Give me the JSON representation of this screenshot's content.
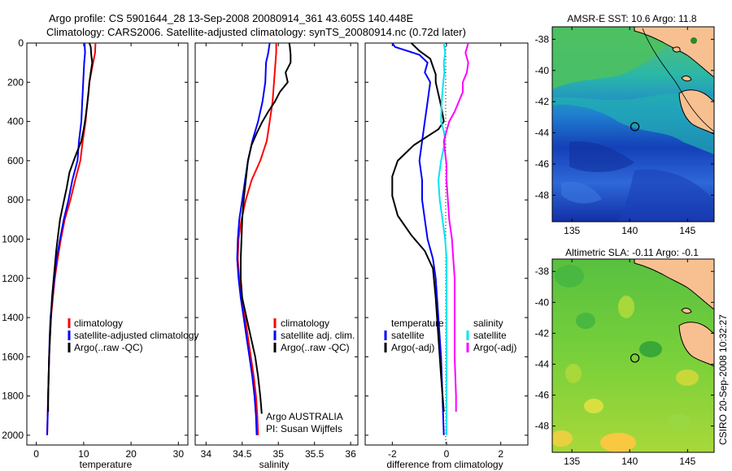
{
  "header": {
    "line1": "Argo profile: CS 5901644_28 13-Sep-2008 20080914_361 43.605S 140.448E",
    "line2": "Climatology: CARS2006. Satellite-adjusted climatology: synTS_20080914.nc (0.72d later)"
  },
  "side_label": "CSIRO 20-Sep-2008 10:32:27",
  "chart_data": [
    {
      "type": "line",
      "xlabel": "temperature",
      "ylim": [
        0,
        2050
      ],
      "xlim": [
        -2,
        32
      ],
      "xticks": [
        "0",
        "10",
        "20",
        "30"
      ],
      "yticks": [
        "0",
        "200",
        "400",
        "600",
        "800",
        "1000",
        "1200",
        "1400",
        "1600",
        "1800",
        "2000"
      ],
      "legend": {
        "position": "lower-right",
        "entries": [
          "climatology",
          "satellite-adjusted climatology",
          "Argo(..raw -QC)"
        ]
      },
      "series": [
        {
          "name": "climatology",
          "color": "#ff0000",
          "points": [
            [
              12.5,
              0
            ],
            [
              12.4,
              50
            ],
            [
              12.0,
              100
            ],
            [
              11.2,
              200
            ],
            [
              10.8,
              300
            ],
            [
              10.4,
              400
            ],
            [
              9.8,
              500
            ],
            [
              9.3,
              600
            ],
            [
              8.2,
              700
            ],
            [
              7.2,
              800
            ],
            [
              6.0,
              900
            ],
            [
              5.2,
              1000
            ],
            [
              4.5,
              1100
            ],
            [
              3.9,
              1200
            ],
            [
              3.5,
              1300
            ],
            [
              3.1,
              1400
            ],
            [
              2.9,
              1500
            ],
            [
              2.7,
              1600
            ],
            [
              2.6,
              1700
            ],
            [
              2.5,
              1800
            ],
            [
              2.4,
              1900
            ],
            [
              2.3,
              2000
            ]
          ]
        },
        {
          "name": "satellite-adjusted climatology",
          "color": "#0000ff",
          "points": [
            [
              10.2,
              0
            ],
            [
              10.3,
              50
            ],
            [
              10.1,
              100
            ],
            [
              9.9,
              200
            ],
            [
              9.7,
              300
            ],
            [
              9.5,
              400
            ],
            [
              9.0,
              500
            ],
            [
              8.7,
              600
            ],
            [
              7.6,
              700
            ],
            [
              6.8,
              800
            ],
            [
              5.8,
              900
            ],
            [
              5.0,
              1000
            ],
            [
              4.3,
              1100
            ],
            [
              3.8,
              1200
            ],
            [
              3.4,
              1300
            ],
            [
              3.0,
              1400
            ],
            [
              2.8,
              1500
            ],
            [
              2.7,
              1600
            ],
            [
              2.6,
              1700
            ],
            [
              2.5,
              1800
            ],
            [
              2.4,
              1900
            ],
            [
              2.3,
              2000
            ]
          ]
        },
        {
          "name": "Argo(..raw -QC)",
          "color": "#000000",
          "points": [
            [
              11.2,
              0
            ],
            [
              11.5,
              20
            ],
            [
              11.6,
              60
            ],
            [
              11.8,
              100
            ],
            [
              11.5,
              150
            ],
            [
              11.2,
              200
            ],
            [
              11.0,
              260
            ],
            [
              10.7,
              320
            ],
            [
              10.4,
              380
            ],
            [
              10.0,
              440
            ],
            [
              9.5,
              500
            ],
            [
              8.2,
              580
            ],
            [
              7.0,
              660
            ],
            [
              6.4,
              740
            ],
            [
              5.7,
              820
            ],
            [
              5.0,
              900
            ],
            [
              4.6,
              980
            ],
            [
              4.2,
              1060
            ],
            [
              3.9,
              1140
            ],
            [
              3.6,
              1220
            ],
            [
              3.3,
              1300
            ],
            [
              3.1,
              1400
            ],
            [
              2.9,
              1500
            ],
            [
              2.7,
              1600
            ],
            [
              2.6,
              1700
            ],
            [
              2.5,
              1800
            ],
            [
              2.5,
              1880
            ]
          ]
        }
      ]
    },
    {
      "type": "line",
      "xlabel": "salinity",
      "ylim": [
        0,
        2050
      ],
      "xlim": [
        33.85,
        36.1
      ],
      "xticks": [
        "34",
        "34.5",
        "35",
        "35.5",
        "36"
      ],
      "legend": {
        "position": "lower-right",
        "entries": [
          "climatology",
          "satellite adj. clim.",
          "Argo(..raw -QC)"
        ]
      },
      "annotation": [
        "Argo AUSTRALIA",
        "PI: Susan Wijffels"
      ],
      "series": [
        {
          "name": "climatology",
          "color": "#ff0000",
          "points": [
            [
              34.97,
              0
            ],
            [
              34.97,
              50
            ],
            [
              34.96,
              100
            ],
            [
              34.94,
              200
            ],
            [
              34.92,
              300
            ],
            [
              34.88,
              400
            ],
            [
              34.84,
              500
            ],
            [
              34.75,
              600
            ],
            [
              34.63,
              700
            ],
            [
              34.55,
              800
            ],
            [
              34.49,
              900
            ],
            [
              34.45,
              1000
            ],
            [
              34.44,
              1100
            ],
            [
              34.46,
              1200
            ],
            [
              34.5,
              1300
            ],
            [
              34.54,
              1400
            ],
            [
              34.58,
              1500
            ],
            [
              34.62,
              1600
            ],
            [
              34.66,
              1700
            ],
            [
              34.69,
              1800
            ],
            [
              34.71,
              1900
            ],
            [
              34.72,
              2000
            ]
          ]
        },
        {
          "name": "satellite adj. clim.",
          "color": "#0000ff",
          "points": [
            [
              34.88,
              0
            ],
            [
              34.86,
              50
            ],
            [
              34.83,
              100
            ],
            [
              34.82,
              200
            ],
            [
              34.78,
              300
            ],
            [
              34.72,
              400
            ],
            [
              34.64,
              500
            ],
            [
              34.58,
              600
            ],
            [
              34.54,
              700
            ],
            [
              34.5,
              800
            ],
            [
              34.46,
              900
            ],
            [
              34.44,
              1000
            ],
            [
              34.43,
              1100
            ],
            [
              34.45,
              1200
            ],
            [
              34.48,
              1300
            ],
            [
              34.52,
              1400
            ],
            [
              34.56,
              1500
            ],
            [
              34.6,
              1600
            ],
            [
              34.64,
              1700
            ],
            [
              34.67,
              1800
            ],
            [
              34.69,
              1900
            ],
            [
              34.7,
              2000
            ]
          ]
        },
        {
          "name": "Argo(..raw -QC)",
          "color": "#000000",
          "points": [
            [
              35.15,
              0
            ],
            [
              35.16,
              20
            ],
            [
              35.17,
              60
            ],
            [
              35.17,
              100
            ],
            [
              35.1,
              150
            ],
            [
              35.13,
              200
            ],
            [
              35.02,
              250
            ],
            [
              34.95,
              300
            ],
            [
              34.86,
              350
            ],
            [
              34.78,
              400
            ],
            [
              34.7,
              460
            ],
            [
              34.63,
              520
            ],
            [
              34.58,
              600
            ],
            [
              34.55,
              700
            ],
            [
              34.52,
              800
            ],
            [
              34.5,
              900
            ],
            [
              34.49,
              1000
            ],
            [
              34.48,
              1100
            ],
            [
              34.48,
              1200
            ],
            [
              34.5,
              1300
            ],
            [
              34.56,
              1400
            ],
            [
              34.62,
              1500
            ],
            [
              34.68,
              1600
            ],
            [
              34.72,
              1700
            ],
            [
              34.75,
              1800
            ],
            [
              34.77,
              1890
            ]
          ]
        }
      ]
    },
    {
      "type": "line",
      "xlabel": "difference from climatology",
      "ylim": [
        0,
        2050
      ],
      "xlim": [
        -3,
        3
      ],
      "xticks": [
        "-2",
        "0",
        "2"
      ],
      "legend": {
        "position": "lower-middle",
        "temperature_header": "temperature",
        "salinity_header": "salinity",
        "entries": [
          "satellite",
          "Argo(-adj)",
          "satellite",
          "Argo(-adj)"
        ]
      },
      "series": [
        {
          "name": "temperature satellite",
          "color": "#0000ff",
          "points": [
            [
              -2.0,
              0
            ],
            [
              -1.9,
              20
            ],
            [
              -1.0,
              60
            ],
            [
              -0.7,
              100
            ],
            [
              -0.8,
              150
            ],
            [
              -0.6,
              200
            ],
            [
              -0.7,
              300
            ],
            [
              -0.8,
              400
            ],
            [
              -0.9,
              500
            ],
            [
              -1.0,
              600
            ],
            [
              -0.9,
              700
            ],
            [
              -0.9,
              800
            ],
            [
              -0.8,
              900
            ],
            [
              -0.7,
              1000
            ],
            [
              -0.5,
              1100
            ],
            [
              -0.4,
              1200
            ],
            [
              -0.3,
              1400
            ],
            [
              -0.2,
              1600
            ],
            [
              -0.15,
              1800
            ],
            [
              -0.1,
              2000
            ]
          ]
        },
        {
          "name": "temperature Argo(-adj)",
          "color": "#000000",
          "points": [
            [
              -1.3,
              0
            ],
            [
              -1.0,
              40
            ],
            [
              -0.6,
              80
            ],
            [
              -0.5,
              120
            ],
            [
              -0.4,
              160
            ],
            [
              -0.4,
              200
            ],
            [
              -0.3,
              260
            ],
            [
              -0.2,
              320
            ],
            [
              -0.1,
              400
            ],
            [
              -0.3,
              440
            ],
            [
              -1.2,
              520
            ],
            [
              -1.8,
              600
            ],
            [
              -2.0,
              680
            ],
            [
              -2.0,
              780
            ],
            [
              -1.8,
              880
            ],
            [
              -1.3,
              980
            ],
            [
              -0.8,
              1060
            ],
            [
              -0.5,
              1150
            ],
            [
              -0.4,
              1300
            ],
            [
              -0.3,
              1500
            ],
            [
              -0.2,
              1700
            ],
            [
              -0.1,
              1880
            ]
          ]
        },
        {
          "name": "salinity satellite",
          "color": "#00e5ee",
          "points": [
            [
              -0.1,
              0
            ],
            [
              -0.05,
              50
            ],
            [
              -0.1,
              100
            ],
            [
              -0.08,
              150
            ],
            [
              -0.12,
              200
            ],
            [
              -0.18,
              300
            ],
            [
              -0.2,
              400
            ],
            [
              -0.1,
              450
            ],
            [
              -0.05,
              500
            ],
            [
              -0.2,
              600
            ],
            [
              -0.3,
              700
            ],
            [
              -0.25,
              800
            ],
            [
              -0.15,
              900
            ],
            [
              -0.05,
              1000
            ],
            [
              0.0,
              1100
            ],
            [
              0.0,
              1200
            ],
            [
              0.0,
              1400
            ],
            [
              0.0,
              1600
            ],
            [
              0.0,
              1800
            ],
            [
              0.0,
              2000
            ]
          ]
        },
        {
          "name": "salinity Argo(-adj)",
          "color": "#ff00ff",
          "points": [
            [
              0.8,
              0
            ],
            [
              0.7,
              50
            ],
            [
              0.8,
              100
            ],
            [
              0.75,
              150
            ],
            [
              0.6,
              200
            ],
            [
              0.6,
              250
            ],
            [
              0.45,
              300
            ],
            [
              0.3,
              350
            ],
            [
              0.1,
              400
            ],
            [
              0.0,
              450
            ],
            [
              -0.1,
              500
            ],
            [
              -0.05,
              560
            ],
            [
              0.0,
              620
            ],
            [
              0.0,
              700
            ],
            [
              0.05,
              800
            ],
            [
              0.1,
              900
            ],
            [
              0.2,
              1000
            ],
            [
              0.25,
              1100
            ],
            [
              0.3,
              1200
            ],
            [
              0.3,
              1400
            ],
            [
              0.3,
              1600
            ],
            [
              0.35,
              1800
            ],
            [
              0.35,
              1880
            ]
          ]
        }
      ]
    },
    {
      "type": "heatmap",
      "title": "AMSR-E SST: 10.6 Argo: 11.8",
      "xticks": [
        "135",
        "140",
        "145"
      ],
      "yticks": [
        "-38",
        "-40",
        "-42",
        "-44",
        "-46",
        "-48"
      ],
      "xlim": [
        133.3,
        147.3
      ],
      "ylim": [
        -49.7,
        -37.2
      ],
      "marker": {
        "lon": 140.448,
        "lat": -43.605
      }
    },
    {
      "type": "heatmap",
      "title": "Altimetric SLA: -0.11 Argo: -0.1",
      "xticks": [
        "135",
        "140",
        "145"
      ],
      "yticks": [
        "-38",
        "-40",
        "-42",
        "-44",
        "-46",
        "-48"
      ],
      "xlim": [
        133.3,
        147.3
      ],
      "ylim": [
        -49.7,
        -37.2
      ],
      "marker": {
        "lon": 140.448,
        "lat": -43.605
      }
    }
  ]
}
